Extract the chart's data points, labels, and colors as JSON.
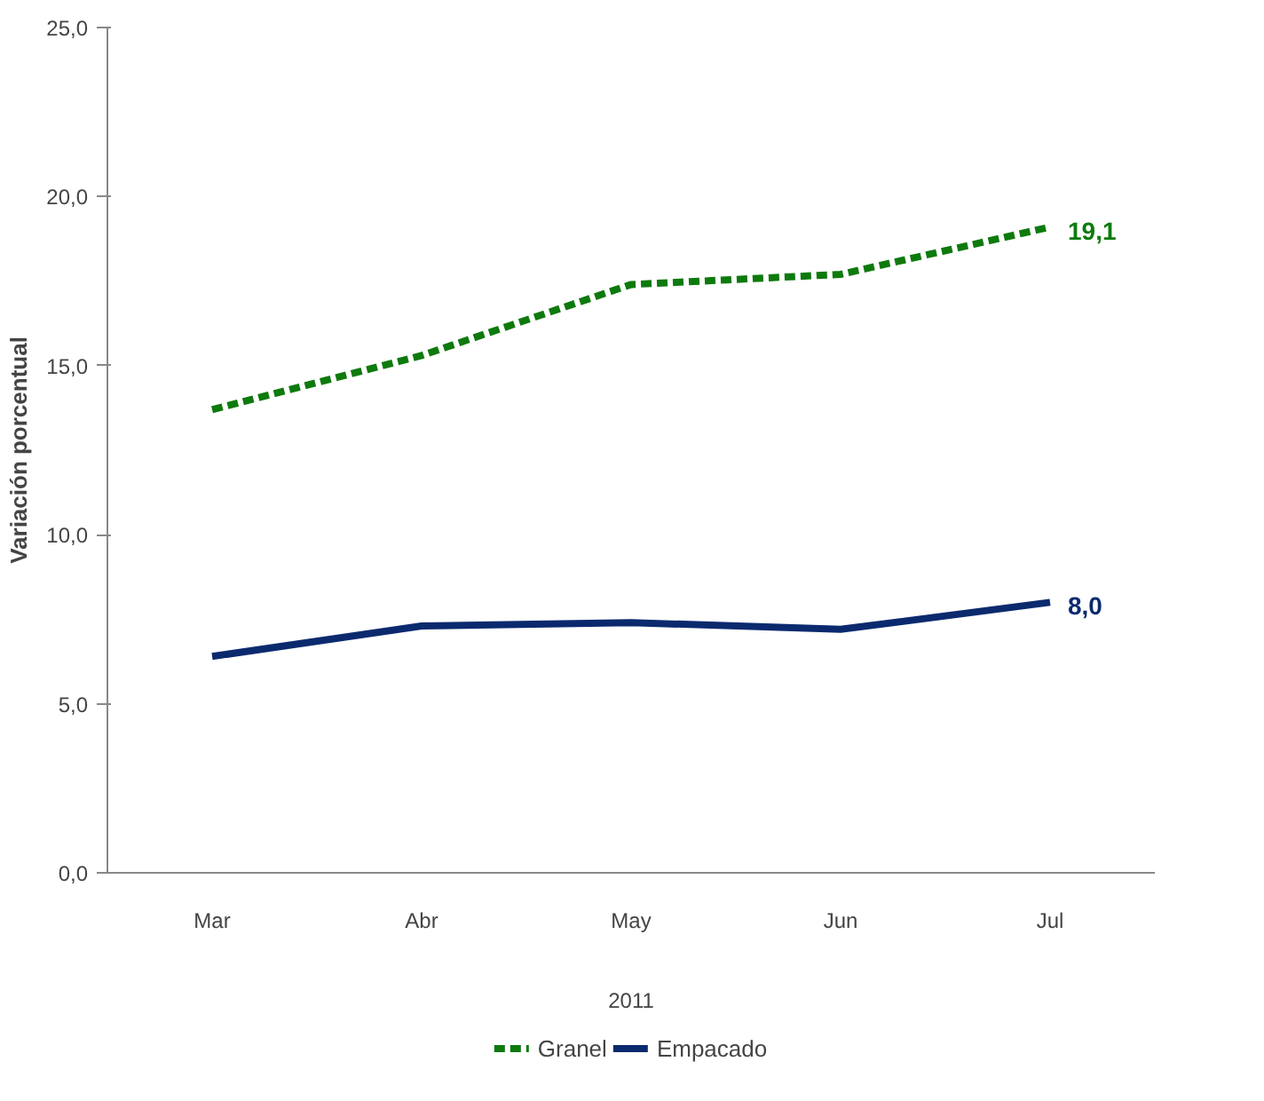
{
  "chart_data": {
    "type": "line",
    "ylabel": "Variación porcentual",
    "xlabel": "2011",
    "categories": [
      "Mar",
      "Abr",
      "May",
      "Jun",
      "Jul"
    ],
    "series": [
      {
        "name": "Granel",
        "color": "#0e7a0d",
        "line_style": "dashed",
        "values": [
          13.7,
          15.3,
          17.4,
          17.7,
          19.1
        ],
        "value_labels": [
          null,
          null,
          null,
          null,
          "19,1"
        ]
      },
      {
        "name": "Empacado",
        "color": "#0b2a6e",
        "line_style": "solid",
        "values": [
          6.4,
          7.3,
          7.4,
          7.2,
          8.0
        ],
        "value_labels": [
          null,
          null,
          null,
          null,
          "8,0"
        ]
      }
    ],
    "ylim": [
      0,
      25
    ],
    "yticks": [
      {
        "value": 0,
        "label": "0,0"
      },
      {
        "value": 5,
        "label": "5,0"
      },
      {
        "value": 10,
        "label": "10,0"
      },
      {
        "value": 15,
        "label": "15,0"
      },
      {
        "value": 20,
        "label": "20,0"
      },
      {
        "value": 25,
        "label": "25,0"
      }
    ],
    "grid": false,
    "legend": "bottom",
    "marker": "none"
  }
}
